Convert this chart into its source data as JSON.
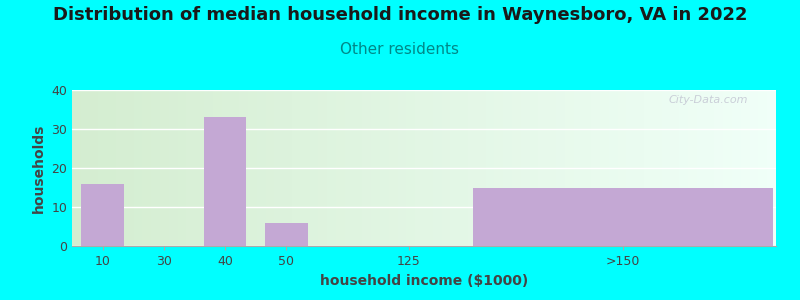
{
  "title": "Distribution of median household income in Waynesboro, VA in 2022",
  "subtitle": "Other residents",
  "xlabel": "household income ($1000)",
  "ylabel": "households",
  "bar_labels": [
    "10",
    "30",
    "40",
    "50",
    "125",
    ">150"
  ],
  "bar_values": [
    16,
    0,
    33,
    6,
    0,
    15
  ],
  "bar_color": "#c4a8d4",
  "background_color": "#00ffff",
  "plot_bg_color_left": "#d4edd0",
  "plot_bg_color_right": "#f0fff8",
  "title_color": "#1a1a1a",
  "subtitle_color": "#008888",
  "axis_label_color": "#444444",
  "tick_color": "#444444",
  "ylim": [
    0,
    40
  ],
  "yticks": [
    0,
    10,
    20,
    30,
    40
  ],
  "watermark": "City-Data.com",
  "title_fontsize": 13,
  "subtitle_fontsize": 11,
  "axis_label_fontsize": 10,
  "bar_positions": [
    0,
    1,
    2,
    3,
    5,
    8.5
  ],
  "bar_widths": [
    0.7,
    0.7,
    0.7,
    0.7,
    0.7,
    4.8
  ],
  "xlim": [
    -0.5,
    11.0
  ]
}
